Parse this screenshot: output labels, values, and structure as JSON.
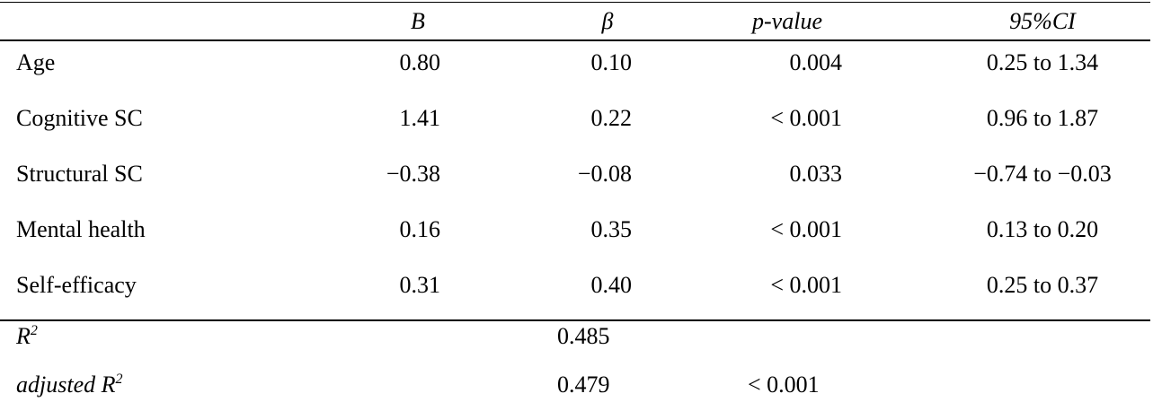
{
  "table": {
    "header": [
      "B",
      "β",
      "p-value",
      "95%CI"
    ],
    "rows": [
      [
        "Age",
        "0.80",
        "0.10",
        "0.004",
        "0.25 to 1.34"
      ],
      [
        "Cognitive SC",
        "1.41",
        "0.22",
        "< 0.001",
        "0.96 to 1.87"
      ],
      [
        "Structural SC",
        "−0.38",
        "−0.08",
        "0.033",
        "−0.74 to −0.03"
      ],
      [
        "Mental health",
        "0.16",
        "0.35",
        "< 0.001",
        "0.13 to 0.20"
      ],
      [
        "Self-efficacy",
        "0.31",
        "0.40",
        "< 0.001",
        "0.25 to 0.37"
      ]
    ],
    "footer": [
      {
        "label": {
          "text": "R",
          "superscript": "2"
        },
        "beta": "0.485"
      },
      {
        "label": {
          "text": "adjusted R",
          "superscript": "2"
        },
        "beta": "0.479",
        "p_value": "< 0.001"
      }
    ]
  }
}
